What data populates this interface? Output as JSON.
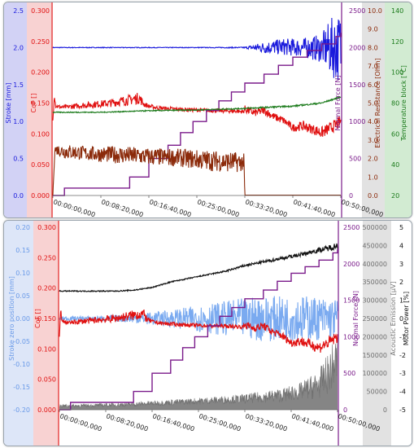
{
  "chart_data": [
    {
      "type": "line",
      "x_ticks": [
        "00:00:00,000",
        "00:08:20,000",
        "00:16:40,000",
        "00:25:00,000",
        "00:33:20,000",
        "00:41:40,000",
        "00:50:00,000"
      ],
      "xlim": [
        0,
        3000
      ],
      "axes": [
        {
          "id": "stroke",
          "label": "Stroke [mm]",
          "side": "left",
          "color": "#1a1adc",
          "band": "#d2d2f5",
          "ylim": [
            0,
            2.5
          ],
          "ticks": [
            "0.0",
            "0.5",
            "1.0",
            "1.5",
            "2.0",
            "2.5"
          ]
        },
        {
          "id": "cof",
          "label": "CoF []",
          "side": "left",
          "color": "#e01010",
          "band": "#f8d2d2",
          "ylim": [
            0,
            0.3
          ],
          "ticks": [
            "0.000",
            "0.050",
            "0.100",
            "0.150",
            "0.200",
            "0.250",
            "0.300"
          ]
        },
        {
          "id": "force",
          "label": "Normal Force [N]",
          "side": "right",
          "color": "#7a1a8a",
          "band": "#ffffff",
          "ylim": [
            0,
            2500
          ],
          "ticks": [
            "0",
            "500",
            "1000",
            "1500",
            "2000",
            "2500"
          ]
        },
        {
          "id": "resistance",
          "label": "Electrical Resistance [Ohm]",
          "side": "right",
          "color": "#8b2a0a",
          "band": "#e2e2e2",
          "ylim": [
            0,
            10
          ],
          "ticks": [
            "0.0",
            "1.0",
            "2.0",
            "3.0",
            "4.0",
            "5.0",
            "6.0",
            "7.0",
            "8.0",
            "9.0",
            "10.0"
          ]
        },
        {
          "id": "temperature",
          "label": "Temperature block [°C]",
          "side": "right",
          "color": "#1a7a1a",
          "band": "#d2ebd2",
          "ylim": [
            20,
            140
          ],
          "ticks": [
            "20",
            "40",
            "60",
            "80",
            "100",
            "120",
            "140"
          ]
        }
      ],
      "series": [
        {
          "axis": "stroke",
          "color": "#1a1adc",
          "x": [
            0,
            400,
            800,
            1200,
            1600,
            2000,
            2200,
            2400,
            2600,
            2800,
            2900,
            3000
          ],
          "y": [
            2.0,
            2.0,
            2.0,
            2.0,
            2.0,
            2.0,
            2.0,
            2.01,
            2.0,
            1.99,
            2.0,
            2.0
          ],
          "noise": [
            0.003,
            0.003,
            0.003,
            0.003,
            0.003,
            0.005,
            0.05,
            0.07,
            0.08,
            0.12,
            0.25,
            0.3
          ]
        },
        {
          "axis": "cof",
          "color": "#e01010",
          "x": [
            0,
            15,
            30,
            100,
            300,
            600,
            900,
            950,
            1000,
            1100,
            1300,
            1600,
            1900,
            1980,
            2000,
            2100,
            2200,
            2300,
            2400,
            2500,
            2600,
            2700,
            2800,
            2900,
            3000
          ],
          "y": [
            0.12,
            0.165,
            0.145,
            0.143,
            0.146,
            0.15,
            0.158,
            0.148,
            0.145,
            0.142,
            0.14,
            0.138,
            0.137,
            0.136,
            0.14,
            0.134,
            0.138,
            0.128,
            0.122,
            0.11,
            0.113,
            0.108,
            0.102,
            0.11,
            0.12
          ],
          "noise": [
            0.003,
            0.003,
            0.002,
            0.002,
            0.003,
            0.004,
            0.006,
            0.003,
            0.002,
            0.002,
            0.002,
            0.002,
            0.002,
            0.002,
            0.004,
            0.004,
            0.004,
            0.004,
            0.004,
            0.004,
            0.005,
            0.005,
            0.006,
            0.006,
            0.006
          ]
        },
        {
          "axis": "force",
          "color": "#7a1a8a",
          "step": true,
          "x": [
            0,
            120,
            800,
            1000,
            1200,
            1330,
            1460,
            1600,
            1730,
            1860,
            2000,
            2200,
            2350,
            2500,
            2650,
            2800,
            2950,
            3000
          ],
          "y": [
            0,
            100,
            250,
            500,
            680,
            850,
            1000,
            1150,
            1280,
            1400,
            1520,
            1640,
            1760,
            1870,
            1960,
            2050,
            2150,
            2200
          ]
        },
        {
          "axis": "resistance",
          "color": "#8b2a0a",
          "x": [
            0,
            20,
            100,
            400,
            700,
            1000,
            1300,
            1600,
            1900,
            1990,
            2000,
            3000
          ],
          "y": [
            0,
            2.5,
            2.4,
            2.25,
            2.2,
            2.1,
            2.05,
            1.9,
            1.8,
            1.8,
            0.02,
            0.02
          ],
          "noise": [
            0,
            0.15,
            0.25,
            0.25,
            0.3,
            0.3,
            0.3,
            0.35,
            0.35,
            0.3,
            0,
            0
          ]
        },
        {
          "axis": "temperature",
          "color": "#1a7a1a",
          "x": [
            0,
            500,
            1000,
            1500,
            2000,
            2500,
            2800,
            3000
          ],
          "y": [
            74,
            74,
            75,
            75.5,
            76.5,
            78,
            80,
            84
          ],
          "noise": [
            0.2,
            0.2,
            0.2,
            0.2,
            0.3,
            0.3,
            0.3,
            0.3
          ]
        }
      ]
    },
    {
      "type": "line",
      "x_ticks": [
        "00:00:00,000",
        "00:08:20,000",
        "00:16:40,000",
        "00:25:00,000",
        "00:33:20,000",
        "00:41:40,000",
        "00:50:00,000"
      ],
      "xlim": [
        0,
        3000
      ],
      "axes": [
        {
          "id": "strokezero",
          "label": "Stroke zero position [mm]",
          "side": "left",
          "color": "#6a9ae8",
          "band": "#dde6f8",
          "ylim": [
            -0.2,
            0.2
          ],
          "ticks": [
            "-0.20",
            "-0.15",
            "-0.10",
            "-0.05",
            "0.00",
            "0.05",
            "0.10",
            "0.15",
            "0.20"
          ]
        },
        {
          "axis_note": "",
          "id": "cof",
          "label": "CoF []",
          "side": "left",
          "color": "#e01010",
          "band": "#f8d2d2",
          "ylim": [
            0,
            0.3
          ],
          "ticks": [
            "0.000",
            "0.050",
            "0.100",
            "0.150",
            "0.200",
            "0.250",
            "0.300"
          ]
        },
        {
          "id": "force",
          "label": "Normal Force [N]",
          "side": "right",
          "color": "#7a1a8a",
          "band": "#ffffff",
          "ylim": [
            0,
            2500
          ],
          "ticks": [
            "0",
            "500",
            "1000",
            "1500",
            "2000",
            "2500"
          ]
        },
        {
          "id": "ae",
          "label": "Acoustic Emission [µV]",
          "side": "right",
          "color": "#707070",
          "band": "#e2e2e2",
          "ylim": [
            0,
            500000
          ],
          "ticks": [
            "0",
            "50000",
            "100000",
            "150000",
            "200000",
            "250000",
            "300000",
            "350000",
            "400000",
            "450000",
            "500000"
          ]
        },
        {
          "id": "motor",
          "label": "Motor Power [%]",
          "side": "right",
          "color": "#111111",
          "band": "#ffffff",
          "ylim": [
            -5,
            5
          ],
          "ticks": [
            "-5",
            "-4",
            "-3",
            "-2",
            "-1",
            "0",
            "1",
            "2",
            "3",
            "4",
            "5"
          ]
        }
      ],
      "series": [
        {
          "axis": "ae",
          "color": "#707070",
          "fill": true,
          "x": [
            0,
            400,
            800,
            1200,
            1600,
            2000,
            2400,
            2600,
            2800,
            2900,
            3000
          ],
          "y": [
            10000,
            12000,
            15000,
            20000,
            25000,
            30000,
            40000,
            50000,
            70000,
            100000,
            140000
          ],
          "noise": [
            3000,
            3000,
            4000,
            5000,
            6000,
            8000,
            12000,
            15000,
            25000,
            35000,
            45000
          ]
        },
        {
          "axis": "strokezero",
          "color": "#7aaaf0",
          "x": [
            0,
            400,
            800,
            1200,
            1600,
            2000,
            2200,
            2400,
            2600,
            2800,
            2900,
            3000
          ],
          "y": [
            0,
            0,
            0,
            0,
            0,
            0,
            0,
            0,
            0,
            0,
            0,
            0
          ],
          "noise": [
            0.003,
            0.003,
            0.006,
            0.012,
            0.02,
            0.028,
            0.032,
            0.03,
            0.032,
            0.03,
            0.028,
            0.028
          ]
        },
        {
          "axis": "cof",
          "color": "#e01010",
          "x": [
            0,
            15,
            30,
            100,
            300,
            600,
            900,
            950,
            1000,
            1100,
            1300,
            1600,
            1900,
            1980,
            2000,
            2100,
            2200,
            2300,
            2400,
            2500,
            2600,
            2700,
            2800,
            2900,
            3000
          ],
          "y": [
            0.12,
            0.165,
            0.145,
            0.143,
            0.146,
            0.15,
            0.158,
            0.148,
            0.145,
            0.142,
            0.14,
            0.138,
            0.137,
            0.136,
            0.14,
            0.134,
            0.138,
            0.128,
            0.122,
            0.11,
            0.113,
            0.108,
            0.102,
            0.11,
            0.12
          ],
          "noise": [
            0.003,
            0.003,
            0.002,
            0.002,
            0.003,
            0.004,
            0.006,
            0.003,
            0.002,
            0.002,
            0.002,
            0.002,
            0.002,
            0.002,
            0.004,
            0.004,
            0.004,
            0.004,
            0.004,
            0.004,
            0.005,
            0.005,
            0.006,
            0.006,
            0.006
          ]
        },
        {
          "axis": "force",
          "color": "#7a1a8a",
          "step": true,
          "x": [
            0,
            120,
            800,
            1000,
            1200,
            1330,
            1460,
            1600,
            1730,
            1860,
            2000,
            2200,
            2350,
            2500,
            2650,
            2800,
            2950,
            3000
          ],
          "y": [
            0,
            100,
            250,
            500,
            680,
            850,
            1000,
            1150,
            1280,
            1400,
            1520,
            1640,
            1760,
            1870,
            1960,
            2050,
            2150,
            2200
          ]
        },
        {
          "axis": "motor",
          "color": "#111111",
          "x": [
            0,
            600,
            800,
            1000,
            1200,
            1500,
            1800,
            2000,
            2200,
            2400,
            2600,
            2800,
            2900,
            3000
          ],
          "y": [
            1.5,
            1.5,
            1.55,
            1.7,
            2.0,
            2.3,
            2.6,
            2.9,
            3.1,
            3.3,
            3.5,
            3.75,
            3.85,
            4.0
          ],
          "noise": [
            0.02,
            0.02,
            0.02,
            0.02,
            0.02,
            0.02,
            0.03,
            0.04,
            0.05,
            0.06,
            0.07,
            0.08,
            0.1,
            0.12
          ]
        }
      ]
    }
  ]
}
